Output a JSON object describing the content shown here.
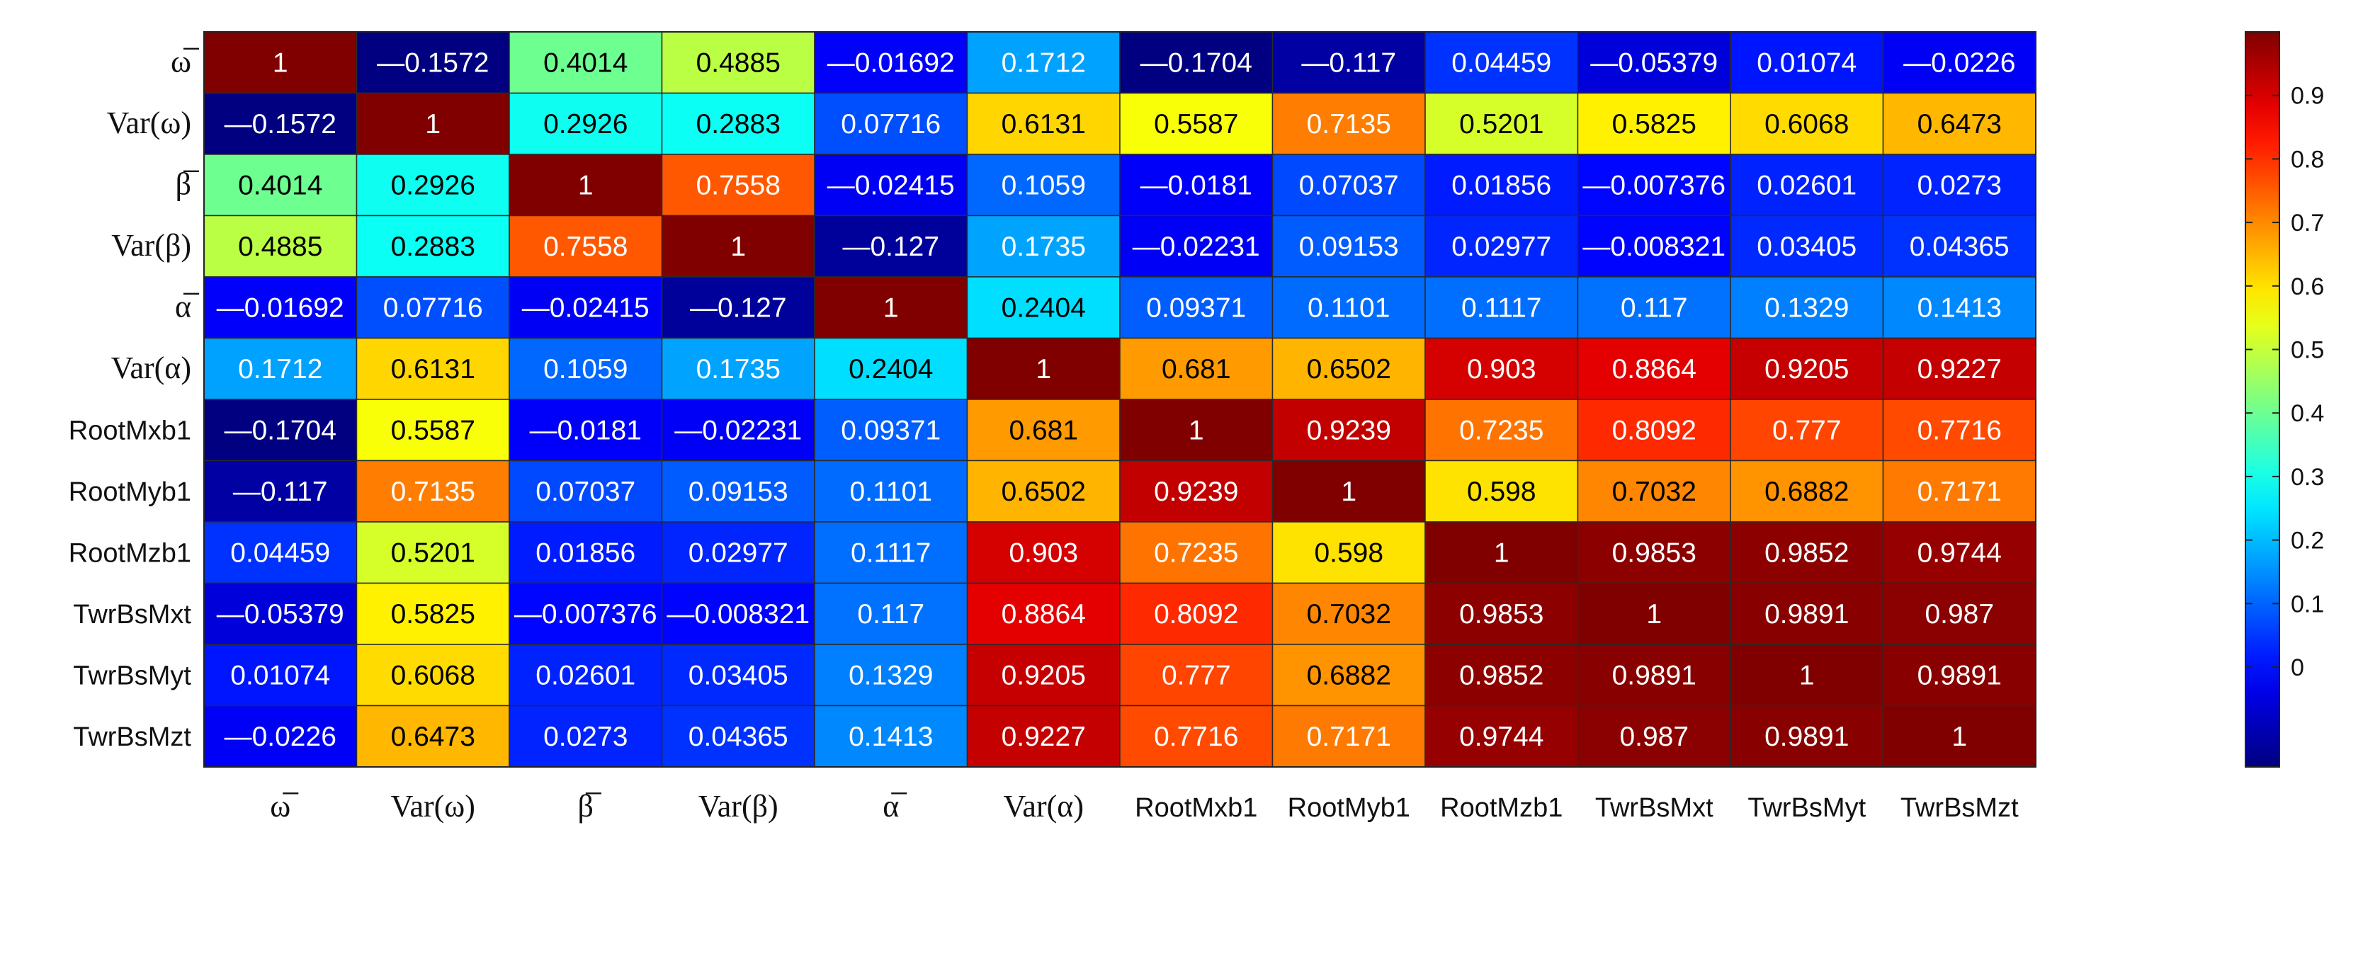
{
  "chart_data": {
    "type": "heatmap",
    "title": "",
    "labels": [
      "ω̅",
      "Var(ω)",
      "β̅",
      "Var(β)",
      "α̅",
      "Var(α)",
      "RootMxb1",
      "RootMyb1",
      "RootMzb1",
      "TwrBsMxt",
      "TwrBsMyt",
      "TwrBsMzt"
    ],
    "label_is_math": [
      true,
      true,
      true,
      true,
      true,
      true,
      false,
      false,
      false,
      false,
      false,
      false
    ],
    "matrix_text": [
      [
        "1",
        "—0.1572",
        "0.4014",
        "0.4885",
        "—0.01692",
        "0.1712",
        "—0.1704",
        "—0.117",
        "0.04459",
        "—0.05379",
        "0.01074",
        "—0.0226"
      ],
      [
        "—0.1572",
        "1",
        "0.2926",
        "0.2883",
        "0.07716",
        "0.6131",
        "0.5587",
        "0.7135",
        "0.5201",
        "0.5825",
        "0.6068",
        "0.6473"
      ],
      [
        "0.4014",
        "0.2926",
        "1",
        "0.7558",
        "—0.02415",
        "0.1059",
        "—0.0181",
        "0.07037",
        "0.01856",
        "—0.007376",
        "0.02601",
        "0.0273"
      ],
      [
        "0.4885",
        "0.2883",
        "0.7558",
        "1",
        "—0.127",
        "0.1735",
        "—0.02231",
        "0.09153",
        "0.02977",
        "—0.008321",
        "0.03405",
        "0.04365"
      ],
      [
        "—0.01692",
        "0.07716",
        "—0.02415",
        "—0.127",
        "1",
        "0.2404",
        "0.09371",
        "0.1101",
        "0.1117",
        "0.117",
        "0.1329",
        "0.1413"
      ],
      [
        "0.1712",
        "0.6131",
        "0.1059",
        "0.1735",
        "0.2404",
        "1",
        "0.681",
        "0.6502",
        "0.903",
        "0.8864",
        "0.9205",
        "0.9227"
      ],
      [
        "—0.1704",
        "0.5587",
        "—0.0181",
        "—0.02231",
        "0.09371",
        "0.681",
        "1",
        "0.9239",
        "0.7235",
        "0.8092",
        "0.777",
        "0.7716"
      ],
      [
        "—0.117",
        "0.7135",
        "0.07037",
        "0.09153",
        "0.1101",
        "0.6502",
        "0.9239",
        "1",
        "0.598",
        "0.7032",
        "0.6882",
        "0.7171"
      ],
      [
        "0.04459",
        "0.5201",
        "0.01856",
        "0.02977",
        "0.1117",
        "0.903",
        "0.7235",
        "0.598",
        "1",
        "0.9853",
        "0.9852",
        "0.9744"
      ],
      [
        "—0.05379",
        "0.5825",
        "—0.007376",
        "—0.008321",
        "0.117",
        "0.8864",
        "0.8092",
        "0.7032",
        "0.9853",
        "1",
        "0.9891",
        "0.987"
      ],
      [
        "0.01074",
        "0.6068",
        "0.02601",
        "0.03405",
        "0.1329",
        "0.9205",
        "0.777",
        "0.6882",
        "0.9852",
        "0.9891",
        "1",
        "0.9891"
      ],
      [
        "—0.0226",
        "0.6473",
        "0.0273",
        "0.04365",
        "0.1413",
        "0.9227",
        "0.7716",
        "0.7171",
        "0.9744",
        "0.987",
        "0.9891",
        "1"
      ]
    ],
    "colorbar": {
      "colormap": "jet",
      "range": [
        -0.1572,
        1
      ],
      "ticks": [
        0,
        0.1,
        0.2,
        0.3,
        0.4,
        0.5,
        0.6,
        0.7,
        0.8,
        0.9
      ],
      "tick_labels": [
        "0",
        "0.1",
        "0.2",
        "0.3",
        "0.4",
        "0.5",
        "0.6",
        "0.7",
        "0.8",
        "0.9"
      ]
    }
  }
}
